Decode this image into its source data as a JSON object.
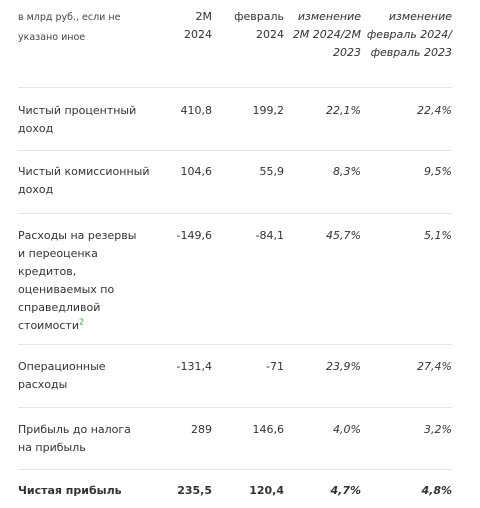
{
  "header": {
    "unit_note": "в млрд руб., если не указано иное",
    "col_2m": "2M 2024",
    "col_feb": "февраль 2024",
    "col_chg1": "изменение 2M 2024/2M 2023",
    "col_chg2": "изменение февраль 2024/февраль 2023"
  },
  "rows": [
    {
      "label": "Чистый процентный доход",
      "v2m": "410,8",
      "feb": "199,2",
      "chg1": "22,1%",
      "chg2": "22,4%",
      "footnote": ""
    },
    {
      "label": "Чистый комиссионный доход",
      "v2m": "104,6",
      "feb": "55,9",
      "chg1": "8,3%",
      "chg2": "9,5%",
      "footnote": ""
    },
    {
      "label": "Расходы на резервы и переоценка кредитов, оцениваемых по справедливой стоимости",
      "v2m": "-149,6",
      "feb": "-84,1",
      "chg1": "45,7%",
      "chg2": "5,1%",
      "footnote": "2"
    },
    {
      "label": "Операционные расходы",
      "v2m": "-131,4",
      "feb": "-71",
      "chg1": "23,9%",
      "chg2": "27,4%",
      "footnote": ""
    },
    {
      "label": "Прибыль до налога на прибыль",
      "v2m": "289",
      "feb": "146,6",
      "chg1": "4,0%",
      "chg2": "3,2%",
      "footnote": ""
    },
    {
      "label": "Чистая прибыль",
      "v2m": "235,5",
      "feb": "120,4",
      "chg1": "4,7%",
      "chg2": "4,8%",
      "footnote": ""
    }
  ]
}
